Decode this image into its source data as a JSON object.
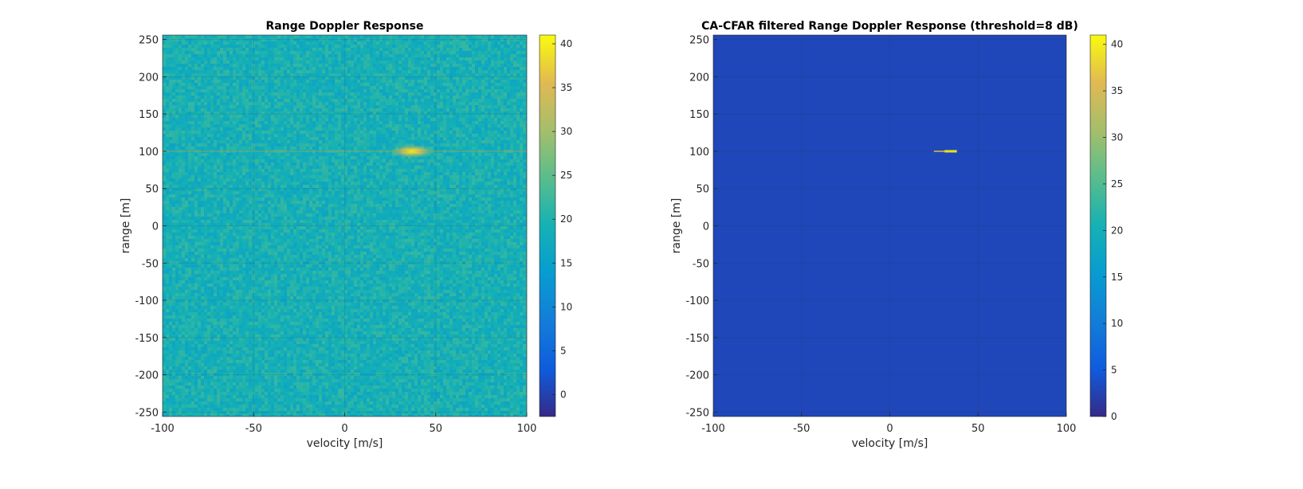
{
  "chart_data": [
    {
      "type": "heatmap",
      "title": "Range Doppler Response",
      "xlabel": "velocity [m/s]",
      "ylabel": "range [m]",
      "xlim": [
        -100,
        100
      ],
      "ylim": [
        -256,
        256
      ],
      "xticks": [
        -100,
        -50,
        0,
        50,
        100
      ],
      "yticks": [
        250,
        200,
        150,
        100,
        50,
        0,
        -50,
        -100,
        -150,
        -200,
        -250
      ],
      "colormap": "parula",
      "colorbar": {
        "clim": [
          -2.5,
          41
        ],
        "ticks": [
          0,
          5,
          10,
          15,
          20,
          25,
          30,
          35,
          40
        ]
      },
      "background_level_db": 19,
      "noise_spread_db": 3,
      "targets": [
        {
          "velocity": 37,
          "range": 100,
          "peak_db": 41
        }
      ],
      "range_ridge": {
        "range": 100,
        "level_db": 28
      },
      "grid": true
    },
    {
      "type": "heatmap",
      "title": "CA-CFAR filtered Range Doppler Response (threshold=8 dB)",
      "xlabel": "velocity [m/s]",
      "ylabel": "range [m]",
      "xlim": [
        -100,
        100
      ],
      "ylim": [
        -256,
        256
      ],
      "xticks": [
        -100,
        -50,
        0,
        50,
        100
      ],
      "yticks": [
        250,
        200,
        150,
        100,
        50,
        0,
        -50,
        -100,
        -150,
        -200,
        -250
      ],
      "colormap": "parula",
      "colorbar": {
        "clim": [
          0,
          41
        ],
        "ticks": [
          0,
          5,
          10,
          15,
          20,
          25,
          30,
          35,
          40
        ]
      },
      "background_level_db": 3,
      "detections": [
        {
          "velocity_start": 25,
          "velocity_end": 31,
          "range": 100,
          "level_db": 38
        },
        {
          "velocity_start": 31,
          "velocity_end": 38,
          "range": 100,
          "level_db": 40
        }
      ],
      "grid": true
    }
  ]
}
